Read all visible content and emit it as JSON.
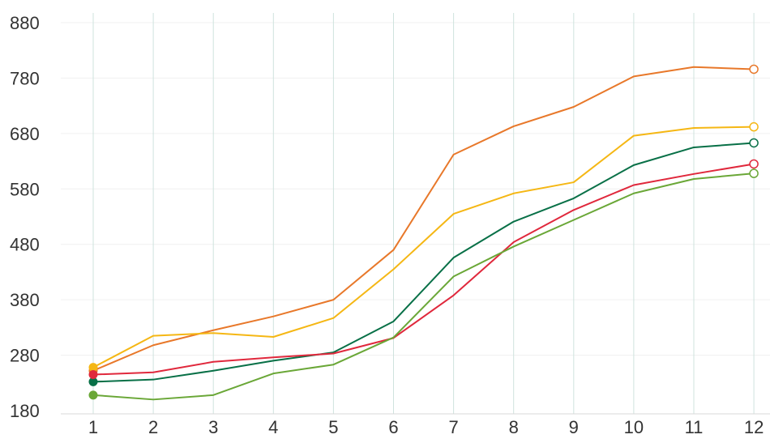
{
  "chart_data": {
    "type": "line",
    "title": "",
    "xlabel": "",
    "ylabel": "",
    "categories": [
      "1",
      "2",
      "3",
      "4",
      "5",
      "6",
      "7",
      "8",
      "9",
      "10",
      "11",
      "12"
    ],
    "y_ticks": [
      "180",
      "280",
      "380",
      "480",
      "580",
      "680",
      "780",
      "880"
    ],
    "ylim": [
      180,
      880
    ],
    "grid": {
      "vertical": true,
      "horizontal": true
    },
    "legend": "none",
    "marker_style": {
      "start": "filled-circle",
      "end": "hollow-circle"
    },
    "series": [
      {
        "color": "#E8782A",
        "values": [
          252,
          298,
          325,
          350,
          380,
          470,
          642,
          693,
          728,
          783,
          800,
          796
        ]
      },
      {
        "color": "#F5B714",
        "values": [
          258,
          315,
          320,
          313,
          347,
          435,
          535,
          572,
          592,
          676,
          690,
          692
        ]
      },
      {
        "color": "#087047",
        "values": [
          232,
          236,
          252,
          270,
          285,
          341,
          456,
          521,
          563,
          623,
          655,
          663
        ]
      },
      {
        "color": "#E0283C",
        "values": [
          245,
          249,
          268,
          276,
          283,
          311,
          388,
          484,
          542,
          587,
          607,
          625
        ]
      },
      {
        "color": "#6AA737",
        "values": [
          208,
          200,
          208,
          247,
          263,
          312,
          422,
          476,
          524,
          572,
          598,
          608
        ]
      }
    ]
  }
}
